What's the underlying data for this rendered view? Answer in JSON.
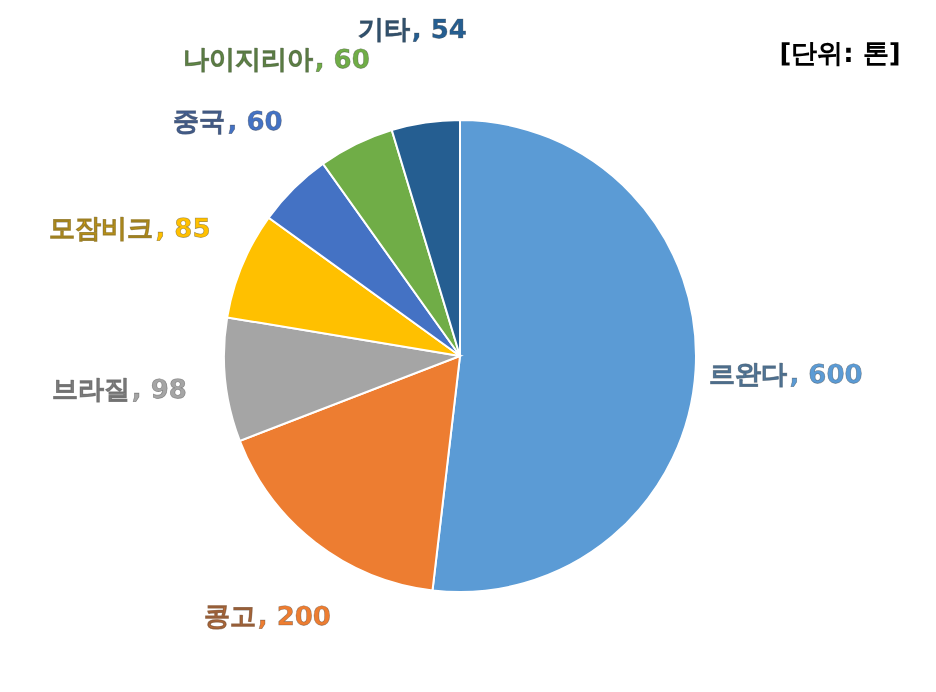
{
  "chart_data": {
    "type": "pie",
    "categories": [
      "르완다",
      "콩고",
      "브라질",
      "모잠비크",
      "중국",
      "나이지리아",
      "기타"
    ],
    "values": [
      600,
      200,
      98,
      85,
      60,
      60,
      54
    ],
    "colors": [
      "#5b9bd5",
      "#ed7d31",
      "#a5a5a5",
      "#ffc000",
      "#4472c4",
      "#70ad47",
      "#255e91"
    ],
    "value_labels": [
      ", 600",
      ", 200",
      ", 98",
      ", 85",
      ", 60",
      ", 60",
      ", 54"
    ],
    "annotations": [
      "[단위: 톤]"
    ]
  }
}
